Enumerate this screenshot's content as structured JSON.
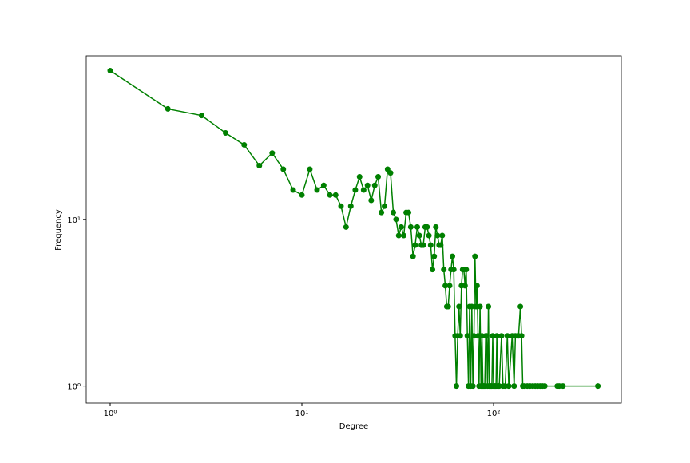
{
  "chart_data": {
    "type": "line",
    "xlabel": "Degree",
    "ylabel": "Frequency",
    "xscale": "log",
    "yscale": "log",
    "color": "#008000",
    "x": [
      1,
      2,
      3,
      4,
      5,
      6,
      7,
      8,
      9,
      10,
      11,
      12,
      13,
      14,
      15,
      16,
      17,
      18,
      19,
      20,
      21,
      22,
      23,
      24,
      25,
      26,
      27,
      28,
      29,
      30,
      31,
      32,
      33,
      34,
      35,
      36,
      37,
      38,
      39,
      40,
      41,
      42,
      43,
      44,
      45,
      46,
      47,
      48,
      49,
      50,
      51,
      52,
      53,
      54,
      55,
      56,
      57,
      58,
      59,
      60,
      61,
      62,
      63,
      64,
      65,
      66,
      67,
      68,
      69,
      70,
      71,
      72,
      73,
      74,
      75,
      76,
      77,
      78,
      79,
      80,
      81,
      82,
      83,
      84,
      85,
      86,
      87,
      88,
      89,
      90,
      91,
      92,
      93,
      94,
      95,
      96,
      97,
      98,
      99,
      100,
      101,
      102,
      103,
      104,
      105,
      106,
      107,
      110,
      112,
      115,
      118,
      120,
      125,
      128,
      130,
      135,
      138,
      140,
      142,
      145,
      150,
      155,
      160,
      165,
      170,
      175,
      180,
      185,
      215,
      220,
      230,
      350
    ],
    "values": [
      78,
      46,
      42,
      33,
      28,
      21,
      25,
      20,
      15,
      14,
      20,
      15,
      16,
      14,
      14,
      12,
      9,
      12,
      15,
      18,
      15,
      16,
      13,
      16,
      18,
      11,
      12,
      20,
      19,
      11,
      10,
      8,
      9,
      8,
      11,
      11,
      9,
      6,
      7,
      9,
      8,
      7,
      7,
      9,
      9,
      8,
      7,
      5,
      6,
      9,
      8,
      7,
      7,
      8,
      5,
      4,
      3,
      3,
      4,
      5,
      6,
      5,
      2,
      1,
      2,
      3,
      2,
      4,
      5,
      5,
      4,
      5,
      2,
      1,
      3,
      1,
      3,
      1,
      2,
      6,
      3,
      4,
      2,
      1,
      3,
      1,
      2,
      1,
      1,
      1,
      2,
      2,
      1,
      3,
      1,
      1,
      1,
      1,
      2,
      1,
      1,
      1,
      1,
      2,
      1,
      1,
      1,
      2,
      1,
      1,
      2,
      1,
      2,
      1,
      2,
      2,
      3,
      2,
      1,
      1,
      1,
      1,
      1,
      1,
      1,
      1,
      1,
      1,
      1,
      1,
      1,
      1
    ],
    "xlim": [
      0.75,
      464
    ],
    "ylim": [
      0.79,
      95.7
    ],
    "xticks": [
      {
        "value": 1,
        "label": "10⁰"
      },
      {
        "value": 10,
        "label": "10¹"
      },
      {
        "value": 100,
        "label": "10²"
      }
    ],
    "yticks": [
      {
        "value": 1,
        "label": "10⁰"
      },
      {
        "value": 10,
        "label": "10¹"
      }
    ]
  }
}
